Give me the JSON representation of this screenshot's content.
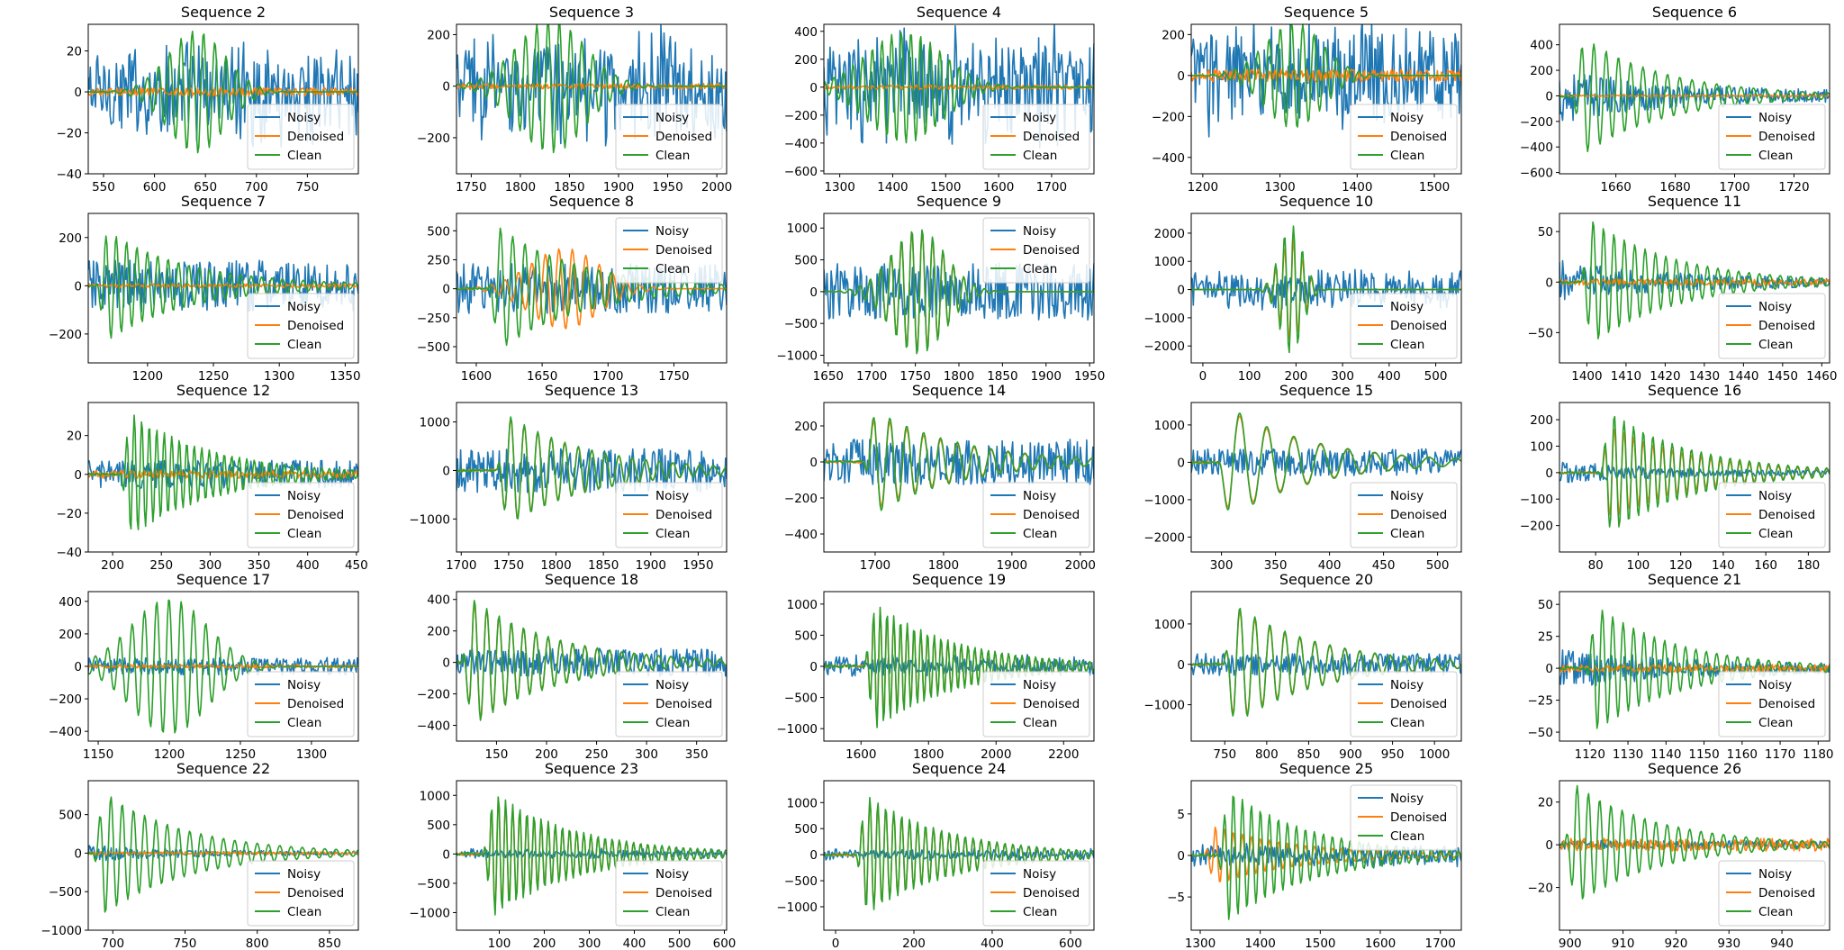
{
  "figure": {
    "colors": {
      "noisy": "#1f77b4",
      "denoised": "#ff7f0e",
      "clean": "#2ca02c"
    },
    "legend_entries": [
      "Noisy",
      "Denoised",
      "Clean"
    ]
  },
  "chart_data": [
    {
      "type": "line",
      "title": "Sequence 2",
      "xlim": [
        535,
        800
      ],
      "ylim": [
        -40,
        33
      ],
      "xticks": [
        550,
        600,
        650,
        700,
        750
      ],
      "yticks": [
        -40,
        -20,
        0,
        20
      ],
      "legend": "lower-right",
      "series": [
        {
          "name": "Noisy",
          "shape": "noise",
          "amp": 18
        },
        {
          "name": "Denoised",
          "shape": "flat",
          "amp": 2
        },
        {
          "name": "Clean",
          "shape": "packet",
          "center": 0.4,
          "width": 0.15,
          "amp": 30,
          "cycles": 24
        }
      ]
    },
    {
      "type": "line",
      "title": "Sequence 3",
      "xlim": [
        1735,
        2010
      ],
      "ylim": [
        -340,
        240
      ],
      "xticks": [
        1750,
        1800,
        1850,
        1900,
        1950,
        2000
      ],
      "yticks": [
        -200,
        0,
        200
      ],
      "legend": "lower-right",
      "series": [
        {
          "name": "Noisy",
          "shape": "noise",
          "amp": 150
        },
        {
          "name": "Denoised",
          "shape": "flat",
          "amp": 10
        },
        {
          "name": "Clean",
          "shape": "packet",
          "center": 0.35,
          "width": 0.18,
          "amp": 260,
          "cycles": 24
        }
      ]
    },
    {
      "type": "line",
      "title": "Sequence 4",
      "xlim": [
        1270,
        1780
      ],
      "ylim": [
        -620,
        450
      ],
      "xticks": [
        1300,
        1400,
        1500,
        1600,
        1700
      ],
      "yticks": [
        -600,
        -400,
        -200,
        0,
        200,
        400
      ],
      "legend": "lower-right",
      "series": [
        {
          "name": "Noisy",
          "shape": "noise",
          "amp": 300
        },
        {
          "name": "Denoised",
          "shape": "flat",
          "amp": 15
        },
        {
          "name": "Clean",
          "shape": "packet",
          "center": 0.3,
          "width": 0.2,
          "amp": 400,
          "cycles": 28
        }
      ]
    },
    {
      "type": "line",
      "title": "Sequence 5",
      "xlim": [
        1185,
        1535
      ],
      "ylim": [
        -480,
        250
      ],
      "xticks": [
        1200,
        1300,
        1400,
        1500
      ],
      "yticks": [
        -400,
        -200,
        0,
        200
      ],
      "legend": "lower-right",
      "series": [
        {
          "name": "Noisy",
          "shape": "noise",
          "amp": 200
        },
        {
          "name": "Denoised",
          "shape": "flat",
          "amp": 30
        },
        {
          "name": "Clean",
          "shape": "packet",
          "center": 0.38,
          "width": 0.15,
          "amp": 260,
          "cycles": 24
        }
      ]
    },
    {
      "type": "line",
      "title": "Sequence 6",
      "xlim": [
        1641,
        1732
      ],
      "ylim": [
        -610,
        560
      ],
      "xticks": [
        1660,
        1680,
        1700,
        1720
      ],
      "yticks": [
        -600,
        -400,
        -200,
        0,
        200,
        400
      ],
      "legend": "lower-right",
      "series": [
        {
          "name": "Noisy",
          "shape": "tail",
          "amp": 60
        },
        {
          "name": "Denoised",
          "shape": "flat",
          "amp": 6
        },
        {
          "name": "Clean",
          "shape": "decay",
          "start": 0.05,
          "amp": 520,
          "cycles": 22
        }
      ]
    },
    {
      "type": "line",
      "title": "Sequence 7",
      "xlim": [
        1155,
        1360
      ],
      "ylim": [
        -320,
        300
      ],
      "xticks": [
        1200,
        1250,
        1300,
        1350
      ],
      "yticks": [
        -200,
        0,
        200
      ],
      "legend": "lower-right",
      "series": [
        {
          "name": "Noisy",
          "shape": "noisepacket",
          "amp": 60
        },
        {
          "name": "Denoised",
          "shape": "flat",
          "amp": 8
        },
        {
          "name": "Clean",
          "shape": "decay",
          "start": 0.03,
          "amp": 260,
          "cycles": 26
        }
      ]
    },
    {
      "type": "line",
      "title": "Sequence 8",
      "xlim": [
        1585,
        1790
      ],
      "ylim": [
        -640,
        650
      ],
      "xticks": [
        1600,
        1650,
        1700,
        1750
      ],
      "yticks": [
        -500,
        -250,
        0,
        250,
        500
      ],
      "legend": "upper-right",
      "series": [
        {
          "name": "Noisy",
          "shape": "noisepacket",
          "amp": 120
        },
        {
          "name": "Denoised",
          "shape": "packet",
          "center": 0.4,
          "width": 0.18,
          "amp": 350,
          "cycles": 20
        },
        {
          "name": "Clean",
          "shape": "decay",
          "start": 0.12,
          "amp": 600,
          "cycles": 22
        }
      ]
    },
    {
      "type": "line",
      "title": "Sequence 9",
      "xlim": [
        1645,
        1955
      ],
      "ylim": [
        -1120,
        1230
      ],
      "xticks": [
        1650,
        1700,
        1750,
        1800,
        1850,
        1900,
        1950
      ],
      "yticks": [
        -1000,
        -500,
        0,
        500,
        1000
      ],
      "legend": "upper-right",
      "series": [
        {
          "name": "Noisy",
          "shape": "noisepacket",
          "amp": 250
        },
        {
          "name": "Denoised",
          "shape": "packet",
          "center": 0.35,
          "width": 0.14,
          "amp": 950,
          "cycles": 26
        },
        {
          "name": "Clean",
          "shape": "packet",
          "center": 0.35,
          "width": 0.14,
          "amp": 1000,
          "cycles": 26
        }
      ]
    },
    {
      "type": "line",
      "title": "Sequence 10",
      "xlim": [
        -25,
        555
      ],
      "ylim": [
        -2600,
        2700
      ],
      "xticks": [
        0,
        100,
        200,
        300,
        400,
        500
      ],
      "yticks": [
        -2000,
        -1000,
        0,
        1000,
        2000
      ],
      "legend": "lower-right",
      "series": [
        {
          "name": "Noisy",
          "shape": "noise",
          "amp": 500
        },
        {
          "name": "Denoised",
          "shape": "packet",
          "center": 0.37,
          "width": 0.06,
          "amp": 1800,
          "cycles": 30
        },
        {
          "name": "Clean",
          "shape": "packet",
          "center": 0.37,
          "width": 0.06,
          "amp": 2300,
          "cycles": 30
        }
      ]
    },
    {
      "type": "line",
      "title": "Sequence 11",
      "xlim": [
        1393,
        1462
      ],
      "ylim": [
        -80,
        68
      ],
      "xticks": [
        1400,
        1410,
        1420,
        1430,
        1440,
        1450,
        1460
      ],
      "yticks": [
        -50,
        0,
        50
      ],
      "legend": "lower-right",
      "series": [
        {
          "name": "Noisy",
          "shape": "tail",
          "amp": 6
        },
        {
          "name": "Denoised",
          "shape": "flat",
          "amp": 3
        },
        {
          "name": "Clean",
          "shape": "decay",
          "start": 0.08,
          "amp": 70,
          "cycles": 26
        }
      ]
    },
    {
      "type": "line",
      "title": "Sequence 12",
      "xlim": [
        175,
        452
      ],
      "ylim": [
        -40,
        37
      ],
      "xticks": [
        200,
        250,
        300,
        350,
        400,
        450
      ],
      "yticks": [
        -40,
        -20,
        0,
        20
      ],
      "legend": "lower-right",
      "series": [
        {
          "name": "Noisy",
          "shape": "noisepacket",
          "amp": 4
        },
        {
          "name": "Denoised",
          "shape": "flat",
          "amp": 2
        },
        {
          "name": "Clean",
          "shape": "decay",
          "start": 0.12,
          "amp": 36,
          "cycles": 36
        }
      ]
    },
    {
      "type": "line",
      "title": "Sequence 13",
      "xlim": [
        1695,
        1980
      ],
      "ylim": [
        -1680,
        1400
      ],
      "xticks": [
        1700,
        1750,
        1800,
        1850,
        1900,
        1950
      ],
      "yticks": [
        -1000,
        0,
        1000
      ],
      "legend": "lower-right",
      "series": [
        {
          "name": "Noisy",
          "shape": "noisepacket",
          "amp": 250
        },
        {
          "name": "Denoised",
          "shape": "decay",
          "start": 0.15,
          "amp": 1250,
          "cycles": 20
        },
        {
          "name": "Clean",
          "shape": "decay",
          "start": 0.15,
          "amp": 1300,
          "cycles": 20
        }
      ]
    },
    {
      "type": "line",
      "title": "Sequence 14",
      "xlim": [
        1625,
        2020
      ],
      "ylim": [
        -500,
        330
      ],
      "xticks": [
        1700,
        1800,
        1900,
        2000
      ],
      "yticks": [
        -400,
        -200,
        0,
        200
      ],
      "legend": "lower-right",
      "series": [
        {
          "name": "Noisy",
          "shape": "noisepacket",
          "amp": 70
        },
        {
          "name": "Denoised",
          "shape": "decay",
          "start": 0.15,
          "amp": 300,
          "cycles": 16
        },
        {
          "name": "Clean",
          "shape": "decay",
          "start": 0.15,
          "amp": 330,
          "cycles": 16
        }
      ]
    },
    {
      "type": "line",
      "title": "Sequence 15",
      "xlim": [
        272,
        522
      ],
      "ylim": [
        -2400,
        1600
      ],
      "xticks": [
        300,
        350,
        400,
        450,
        500
      ],
      "yticks": [
        -2000,
        -1000,
        0,
        1000
      ],
      "legend": "lower-right",
      "series": [
        {
          "name": "Noisy",
          "shape": "noisepacket",
          "amp": 200
        },
        {
          "name": "Denoised",
          "shape": "decay",
          "start": 0.1,
          "amp": 1600,
          "cycles": 10
        },
        {
          "name": "Clean",
          "shape": "decay",
          "start": 0.1,
          "amp": 1700,
          "cycles": 10
        }
      ]
    },
    {
      "type": "line",
      "title": "Sequence 16",
      "xlim": [
        63,
        190
      ],
      "ylim": [
        -300,
        265
      ],
      "xticks": [
        80,
        100,
        120,
        140,
        160,
        180
      ],
      "yticks": [
        -200,
        -100,
        0,
        100,
        200
      ],
      "legend": "lower-right",
      "series": [
        {
          "name": "Noisy",
          "shape": "tail",
          "amp": 12
        },
        {
          "name": "Denoised",
          "shape": "decay",
          "start": 0.15,
          "amp": 200,
          "cycles": 28
        },
        {
          "name": "Clean",
          "shape": "decay",
          "start": 0.15,
          "amp": 260,
          "cycles": 28
        }
      ]
    },
    {
      "type": "line",
      "title": "Sequence 17",
      "xlim": [
        1143,
        1333
      ],
      "ylim": [
        -460,
        460
      ],
      "xticks": [
        1150,
        1200,
        1250,
        1300
      ],
      "yticks": [
        -400,
        -200,
        0,
        200,
        400
      ],
      "legend": "lower-right",
      "series": [
        {
          "name": "Noisy",
          "shape": "noisepacket",
          "amp": 30
        },
        {
          "name": "Denoised",
          "shape": "flat",
          "amp": 10
        },
        {
          "name": "Clean",
          "shape": "packet",
          "center": 0.3,
          "width": 0.2,
          "amp": 420,
          "cycles": 22
        }
      ]
    },
    {
      "type": "line",
      "title": "Sequence 18",
      "xlim": [
        110,
        380
      ],
      "ylim": [
        -500,
        450
      ],
      "xticks": [
        150,
        200,
        250,
        300,
        350
      ],
      "yticks": [
        -400,
        -200,
        0,
        200,
        400
      ],
      "legend": "lower-right",
      "series": [
        {
          "name": "Noisy",
          "shape": "noisepacket",
          "amp": 50
        },
        {
          "name": "Denoised",
          "shape": "decay",
          "start": 0.02,
          "amp": 440,
          "cycles": 22
        },
        {
          "name": "Clean",
          "shape": "decay",
          "start": 0.02,
          "amp": 460,
          "cycles": 22
        }
      ]
    },
    {
      "type": "line",
      "title": "Sequence 19",
      "xlim": [
        1490,
        2290
      ],
      "ylim": [
        -1200,
        1200
      ],
      "xticks": [
        1600,
        1800,
        2000,
        2200
      ],
      "yticks": [
        -1000,
        -500,
        0,
        500,
        1000
      ],
      "legend": "lower-right",
      "series": [
        {
          "name": "Noisy",
          "shape": "noise",
          "amp": 120
        },
        {
          "name": "Denoised",
          "shape": "decay",
          "start": 0.15,
          "amp": 1100,
          "cycles": 40
        },
        {
          "name": "Clean",
          "shape": "decay",
          "start": 0.15,
          "amp": 1150,
          "cycles": 40
        }
      ]
    },
    {
      "type": "line",
      "title": "Sequence 20",
      "xlim": [
        710,
        1032
      ],
      "ylim": [
        -1900,
        1800
      ],
      "xticks": [
        750,
        800,
        850,
        900,
        950,
        1000
      ],
      "yticks": [
        -1000,
        0,
        1000
      ],
      "legend": "lower-right",
      "series": [
        {
          "name": "Noisy",
          "shape": "noisepacket",
          "amp": 150
        },
        {
          "name": "Denoised",
          "shape": "decay",
          "start": 0.12,
          "amp": 1600,
          "cycles": 18
        },
        {
          "name": "Clean",
          "shape": "decay",
          "start": 0.12,
          "amp": 1700,
          "cycles": 18
        }
      ]
    },
    {
      "type": "line",
      "title": "Sequence 21",
      "xlim": [
        1112,
        1183
      ],
      "ylim": [
        -57,
        60
      ],
      "xticks": [
        1120,
        1130,
        1140,
        1150,
        1160,
        1170,
        1180
      ],
      "yticks": [
        -50,
        -25,
        0,
        25,
        50
      ],
      "legend": "lower-right",
      "series": [
        {
          "name": "Noisy",
          "shape": "tail",
          "amp": 5
        },
        {
          "name": "Denoised",
          "shape": "flat",
          "amp": 3
        },
        {
          "name": "Clean",
          "shape": "decay",
          "start": 0.1,
          "amp": 55,
          "cycles": 26
        }
      ]
    },
    {
      "type": "line",
      "title": "Sequence 22",
      "xlim": [
        683,
        870
      ],
      "ylim": [
        -1000,
        940
      ],
      "xticks": [
        700,
        750,
        800,
        850
      ],
      "yticks": [
        -1000,
        -500,
        0,
        500
      ],
      "legend": "lower-right",
      "series": [
        {
          "name": "Noisy",
          "shape": "tail",
          "amp": 30
        },
        {
          "name": "Denoised",
          "shape": "flat",
          "amp": 20
        },
        {
          "name": "Clean",
          "shape": "decay",
          "start": 0.02,
          "amp": 900,
          "cycles": 24
        }
      ]
    },
    {
      "type": "line",
      "title": "Sequence 23",
      "xlim": [
        5,
        605
      ],
      "ylim": [
        -1300,
        1250
      ],
      "xticks": [
        100,
        200,
        300,
        400,
        500,
        600
      ],
      "yticks": [
        -1000,
        -500,
        0,
        500,
        1000
      ],
      "legend": "lower-right",
      "series": [
        {
          "name": "Noisy",
          "shape": "noise",
          "amp": 60
        },
        {
          "name": "Denoised",
          "shape": "decay",
          "start": 0.1,
          "amp": 1150,
          "cycles": 38
        },
        {
          "name": "Clean",
          "shape": "decay",
          "start": 0.1,
          "amp": 1200,
          "cycles": 38
        }
      ]
    },
    {
      "type": "line",
      "title": "Sequence 24",
      "xlim": [
        -30,
        660
      ],
      "ylim": [
        -1450,
        1420
      ],
      "xticks": [
        0,
        200,
        400,
        600
      ],
      "yticks": [
        -1000,
        -500,
        0,
        500,
        1000
      ],
      "legend": "lower-right",
      "series": [
        {
          "name": "Noisy",
          "shape": "noise",
          "amp": 80
        },
        {
          "name": "Denoised",
          "shape": "decay",
          "start": 0.12,
          "amp": 1250,
          "cycles": 34
        },
        {
          "name": "Clean",
          "shape": "decay",
          "start": 0.12,
          "amp": 1300,
          "cycles": 34
        }
      ]
    },
    {
      "type": "line",
      "title": "Sequence 25",
      "xlim": [
        1285,
        1735
      ],
      "ylim": [
        -9,
        9
      ],
      "xticks": [
        1300,
        1400,
        1500,
        1600,
        1700
      ],
      "yticks": [
        -5,
        0,
        5
      ],
      "legend": "upper-right",
      "series": [
        {
          "name": "Noisy",
          "shape": "noise",
          "amp": 1
        },
        {
          "name": "Denoised",
          "shape": "decay",
          "start": 0.05,
          "amp": 4,
          "cycles": 30
        },
        {
          "name": "Clean",
          "shape": "decay",
          "start": 0.1,
          "amp": 9,
          "cycles": 30
        }
      ]
    },
    {
      "type": "line",
      "title": "Sequence 26",
      "xlim": [
        898,
        949
      ],
      "ylim": [
        -40,
        30
      ],
      "xticks": [
        900,
        910,
        920,
        930,
        940
      ],
      "yticks": [
        -20,
        0,
        20
      ],
      "legend": "lower-right",
      "series": [
        {
          "name": "Noisy",
          "shape": "flat",
          "amp": 2
        },
        {
          "name": "Denoised",
          "shape": "flat",
          "amp": 3
        },
        {
          "name": "Clean",
          "shape": "decay",
          "start": 0.02,
          "amp": 32,
          "cycles": 24
        }
      ]
    }
  ]
}
